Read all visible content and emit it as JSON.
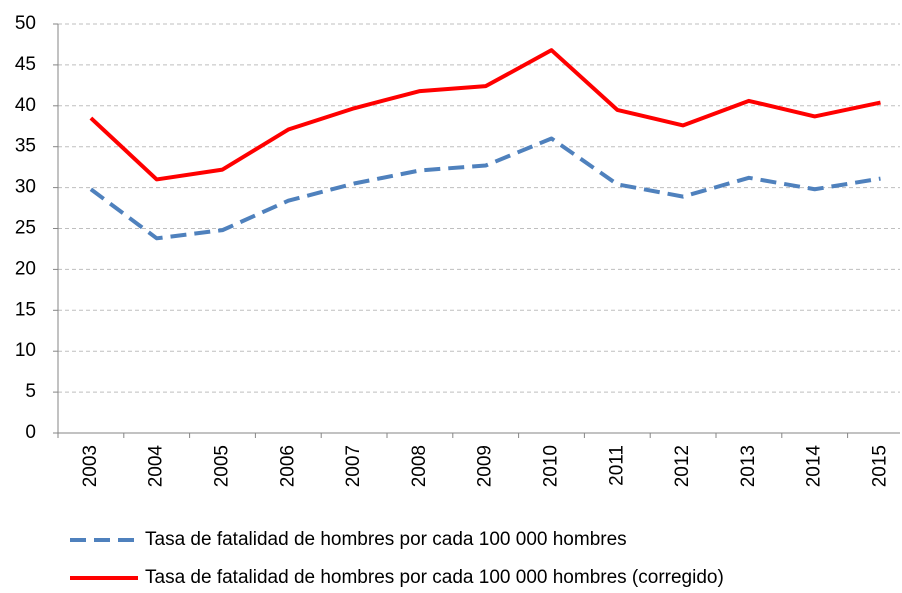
{
  "chart_data": {
    "type": "line",
    "categories": [
      "2003",
      "2004",
      "2005",
      "2006",
      "2007",
      "2008",
      "2009",
      "2010",
      "2011",
      "2012",
      "2013",
      "2014",
      "2015"
    ],
    "series": [
      {
        "name": "Tasa de fatalidad de hombres por cada 100 000 hombres",
        "color": "#4f81bd",
        "dashed": true,
        "values": [
          29.8,
          23.8,
          24.8,
          28.4,
          30.5,
          32.1,
          32.7,
          36.0,
          30.4,
          28.9,
          31.2,
          29.8,
          31.1
        ]
      },
      {
        "name": "Tasa de fatalidad de hombres por cada 100 000 hombres (corregido)",
        "color": "#ff0000",
        "dashed": false,
        "values": [
          38.5,
          31.0,
          32.2,
          37.1,
          39.7,
          41.8,
          42.4,
          46.8,
          39.5,
          37.6,
          40.6,
          38.7,
          40.4
        ]
      }
    ],
    "ylim": [
      0,
      50
    ],
    "yticks": [
      0,
      5,
      10,
      15,
      20,
      25,
      30,
      35,
      40,
      45,
      50
    ],
    "grid": true,
    "legend": "bottom"
  }
}
